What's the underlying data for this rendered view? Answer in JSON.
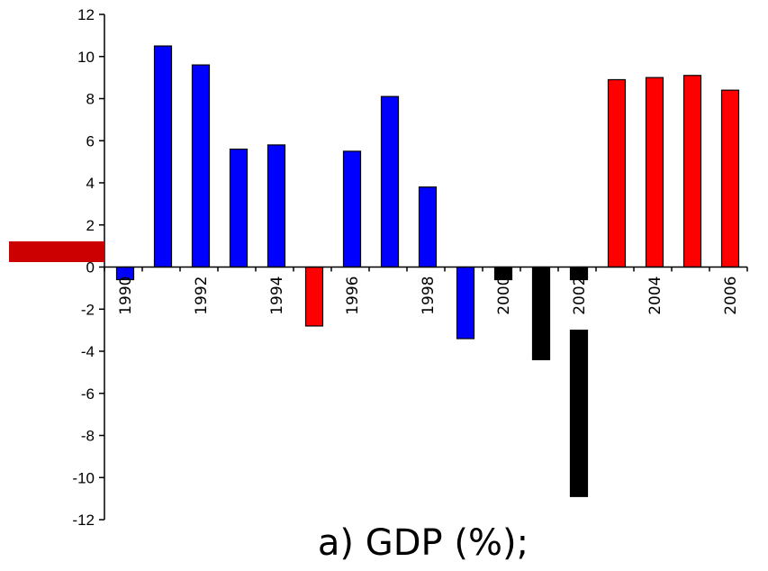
{
  "caption": "a) GDP (%);",
  "marker_color": "#cc0000",
  "chart_data": {
    "type": "bar",
    "title": "",
    "xlabel": "",
    "ylabel": "",
    "ylim": [
      -12,
      12
    ],
    "yticks": [
      -12,
      -10,
      -8,
      -6,
      -4,
      -2,
      0,
      2,
      4,
      6,
      8,
      10,
      12
    ],
    "xtick_labels": [
      "1990",
      "1992",
      "1994",
      "1996",
      "1998",
      "2000",
      "2002",
      "2004",
      "2006"
    ],
    "categories": [
      "1990",
      "1991",
      "1992",
      "1993",
      "1994",
      "1995",
      "1996",
      "1997",
      "1998",
      "1999",
      "2000",
      "2001",
      "2002",
      "2003",
      "2004",
      "2005",
      "2006"
    ],
    "values": [
      -0.6,
      10.5,
      9.6,
      5.6,
      5.8,
      -2.8,
      5.5,
      8.1,
      3.8,
      -3.4,
      -0.6,
      -4.4,
      -0.6,
      8.9,
      9.0,
      9.1,
      8.4
    ],
    "extra_bars": [
      {
        "category": "2002",
        "from": -3.0,
        "to": -10.9,
        "color": "#000000"
      }
    ],
    "colors": [
      "#0000ff",
      "#0000ff",
      "#0000ff",
      "#0000ff",
      "#0000ff",
      "#ff0000",
      "#0000ff",
      "#0000ff",
      "#0000ff",
      "#0000ff",
      "#000000",
      "#000000",
      "#000000",
      "#ff0000",
      "#ff0000",
      "#ff0000",
      "#ff0000"
    ],
    "grid": false,
    "legend": "none"
  }
}
